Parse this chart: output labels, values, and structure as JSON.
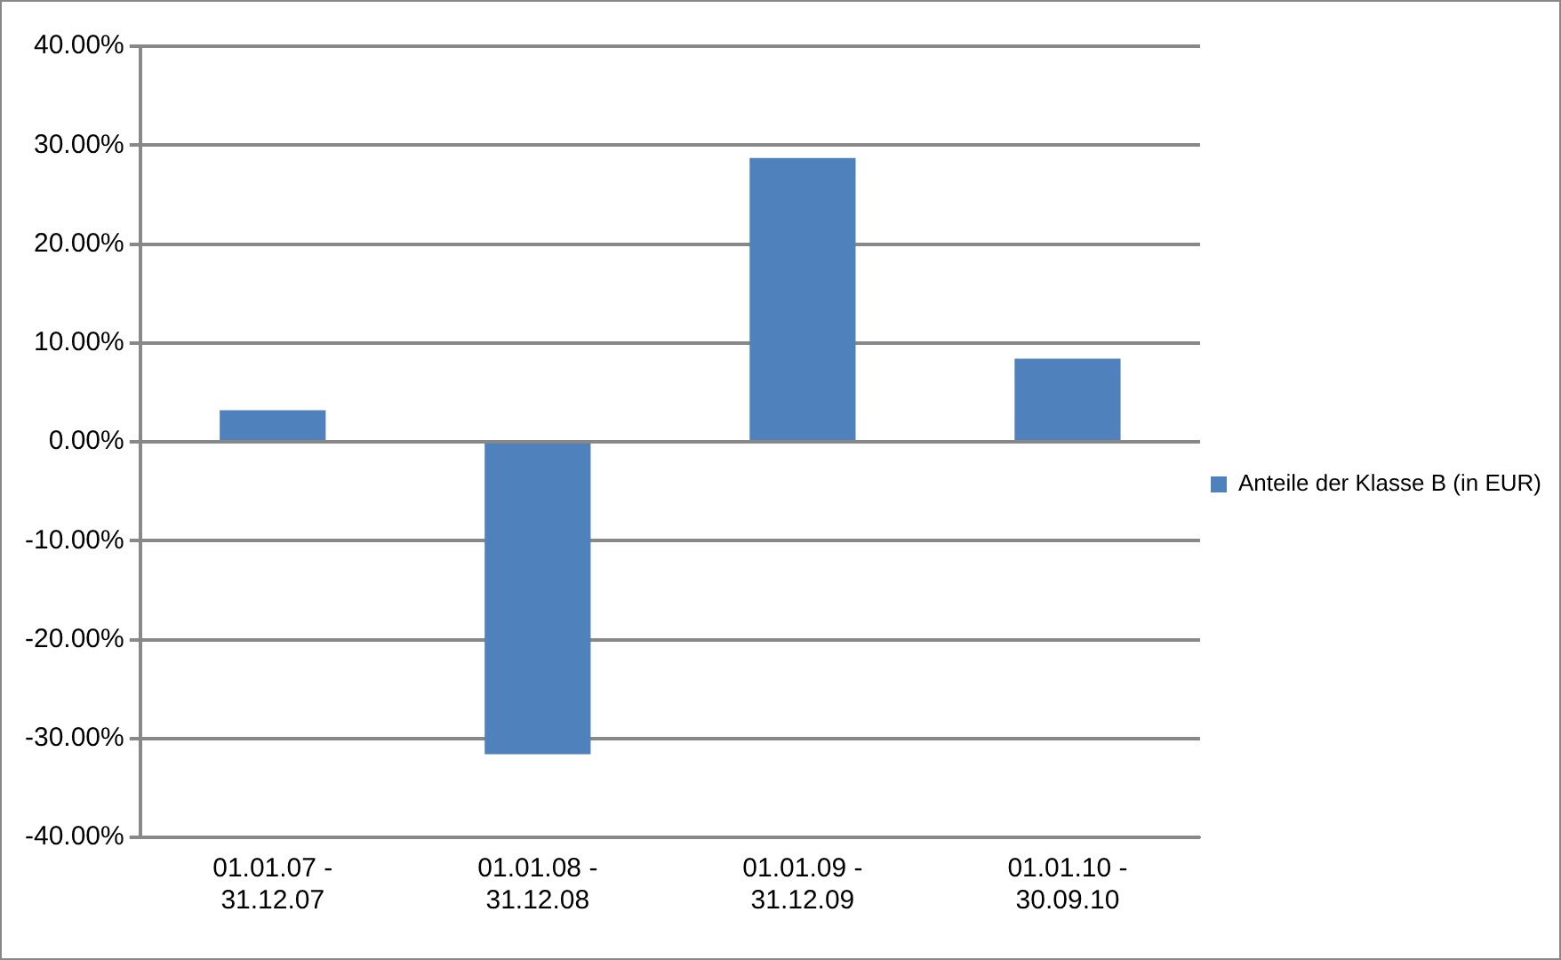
{
  "chart_data": {
    "type": "bar",
    "categories": [
      "01.01.07 - 31.12.07",
      "01.01.08 - 31.12.08",
      "01.01.09 - 31.12.09",
      "01.01.10 - 30.09.10"
    ],
    "series": [
      {
        "name": "Anteile der Klasse B (in EUR)",
        "color": "#4f81bd",
        "values": [
          3.2,
          -31.6,
          28.7,
          8.4
        ]
      }
    ],
    "ylim": [
      -40,
      40
    ],
    "yticks": [
      {
        "value": -40,
        "label": "-40.00%"
      },
      {
        "value": -30,
        "label": "-30.00%"
      },
      {
        "value": -20,
        "label": "-20.00%"
      },
      {
        "value": -10,
        "label": "-10.00%"
      },
      {
        "value": 0,
        "label": "0.00%"
      },
      {
        "value": 10,
        "label": "10.00%"
      },
      {
        "value": 20,
        "label": "20.00%"
      },
      {
        "value": 30,
        "label": "30.00%"
      },
      {
        "value": 40,
        "label": "40.00%"
      }
    ],
    "grid": "y",
    "legend": "right"
  }
}
